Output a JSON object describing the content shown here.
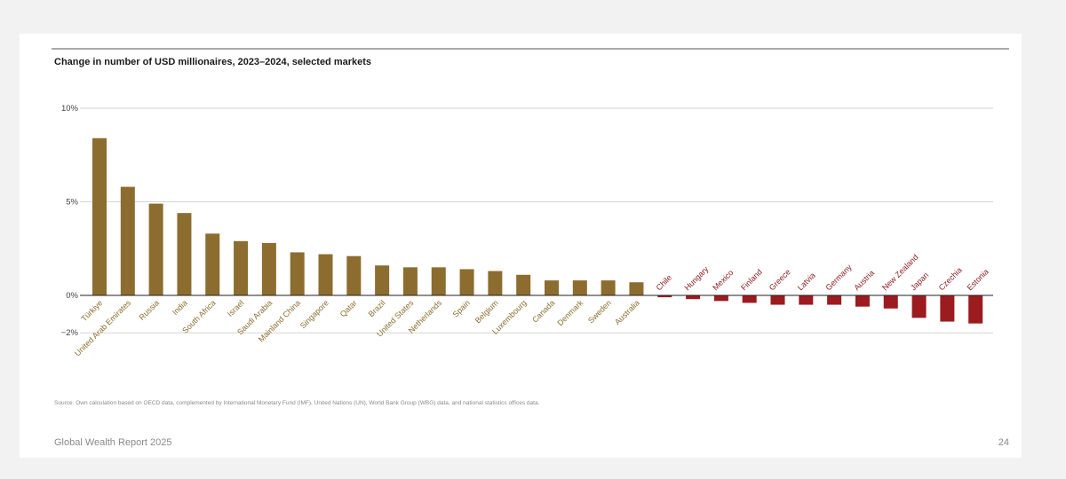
{
  "footer": {
    "publication": "Global Wealth Report 2025",
    "page_number": "24"
  },
  "source_note": "Source: Own calculation based on OECD data, complemented by International Monetary Fund (IMF), United Nations (UN), World Bank Group (WBG) data, and national statistics offices data.",
  "colors": {
    "positive": "#8c6d2f",
    "negative": "#9b1b1e",
    "positive_label": "#8c6d2f",
    "negative_label": "#8b1f24"
  },
  "chart_data": {
    "type": "bar",
    "title": "Change in number of USD millionaires, 2023–2024, selected markets",
    "xlabel": "",
    "ylabel": "",
    "ylim": [
      -2,
      10
    ],
    "y_ticks": [
      {
        "value": 10,
        "label": "10%"
      },
      {
        "value": 5,
        "label": "5%"
      },
      {
        "value": 0,
        "label": "0%"
      },
      {
        "value": -2,
        "label": "−2%"
      }
    ],
    "grid": true,
    "categories": [
      "Türkiye",
      "United Arab Emirates",
      "Russia",
      "India",
      "South Africa",
      "Israel",
      "Saudi Arabia",
      "Mainland China",
      "Singapore",
      "Qatar",
      "Brazil",
      "United States",
      "Netherlands",
      "Spain",
      "Belgium",
      "Luxembourg",
      "Canada",
      "Denmark",
      "Sweden",
      "Australia",
      "Chile",
      "Hungary",
      "Mexico",
      "Finland",
      "Greece",
      "Latvia",
      "Germany",
      "Austria",
      "New Zealand",
      "Japan",
      "Czechia",
      "Estonia"
    ],
    "values": [
      8.4,
      5.8,
      4.9,
      4.4,
      3.3,
      2.9,
      2.8,
      2.3,
      2.2,
      2.1,
      1.6,
      1.5,
      1.5,
      1.4,
      1.3,
      1.1,
      0.8,
      0.8,
      0.8,
      0.7,
      -0.1,
      -0.2,
      -0.3,
      -0.4,
      -0.5,
      -0.5,
      -0.5,
      -0.6,
      -0.7,
      -1.2,
      -1.4,
      -1.5
    ]
  }
}
